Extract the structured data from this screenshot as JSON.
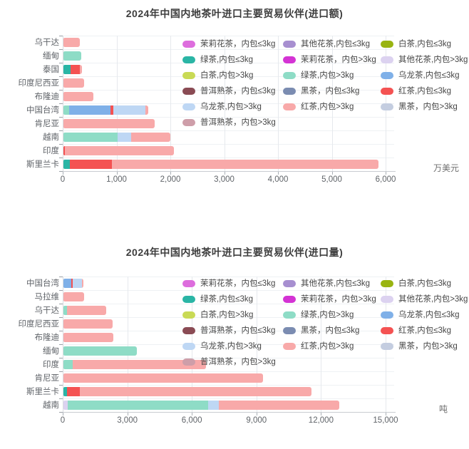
{
  "page_background": "#ffffff",
  "palette": {
    "茉莉花茶，内包≤3kg": "#dd6ddd",
    "其他花茶,内包≤3kg": "#a78fd0",
    "白茶,内包≤3kg": "#99b411",
    "绿茶,内包≤3kg": "#2ab5a5",
    "茉莉花茶，内包>3kg": "#d433d4",
    "其他花茶,内包>3kg": "#dcd2f0",
    "白茶,内包>3kg": "#c9da55",
    "绿茶,内包>3kg": "#8edcc6",
    "乌龙茶,内包≤3kg": "#7fb0e8",
    "普洱熟茶，内包≤3kg": "#8a4b54",
    "黑茶，内包≤3kg": "#7b8cb1",
    "红茶,内包≤3kg": "#f45252",
    "乌龙茶,内包>3kg": "#bed7f4",
    "红茶,内包>3kg": "#f8a9a9",
    "黑茶，内包>3kg": "#c4cde0",
    "普洱熟茶，内包>3kg": "#ce9ea9"
  },
  "legend_order": [
    "茉莉花茶，内包≤3kg",
    "其他花茶,内包≤3kg",
    "白茶,内包≤3kg",
    "绿茶,内包≤3kg",
    "茉莉花茶，内包>3kg",
    "其他花茶,内包>3kg",
    "白茶,内包>3kg",
    "绿茶,内包>3kg",
    "乌龙茶,内包≤3kg",
    "普洱熟茶，内包≤3kg",
    "黑茶，内包≤3kg",
    "红茶,内包≤3kg",
    "乌龙茶,内包>3kg",
    "红茶,内包>3kg",
    "黑茶，内包>3kg",
    "普洱熟茶，内包>3kg"
  ],
  "chart_data": [
    {
      "type": "bar",
      "orientation": "horizontal",
      "stacked": true,
      "grid": true,
      "legend_position": "top-right",
      "title": "2024年中国内地茶叶进口主要贸易伙伴(进口额)",
      "unit": "万美元",
      "xlim": [
        0,
        6000
      ],
      "x_ticks": [
        "0",
        "1,000",
        "2,000",
        "3,000",
        "4,000",
        "5,000",
        "6,000"
      ],
      "categories": [
        "乌干达",
        "缅甸",
        "泰国",
        "印度尼西亚",
        "布隆迪",
        "中国台湾",
        "肯尼亚",
        "越南",
        "印度",
        "斯里兰卡"
      ],
      "bars": [
        [
          {
            "series": "红茶,内包>3kg",
            "value": 300
          }
        ],
        [
          {
            "series": "绿茶,内包>3kg",
            "value": 330
          }
        ],
        [
          {
            "series": "绿茶,内包≤3kg",
            "value": 130
          },
          {
            "series": "红茶,内包≤3kg",
            "value": 170
          },
          {
            "series": "红茶,内包>3kg",
            "value": 40
          }
        ],
        [
          {
            "series": "红茶,内包>3kg",
            "value": 390
          }
        ],
        [
          {
            "series": "红茶,内包>3kg",
            "value": 560
          }
        ],
        [
          {
            "series": "绿茶,内包>3kg",
            "value": 100
          },
          {
            "series": "乌龙茶,内包≤3kg",
            "value": 770
          },
          {
            "series": "红茶,内包≤3kg",
            "value": 60
          },
          {
            "series": "乌龙茶,内包>3kg",
            "value": 590
          },
          {
            "series": "红茶,内包>3kg",
            "value": 60
          }
        ],
        [
          {
            "series": "红茶,内包>3kg",
            "value": 1700
          }
        ],
        [
          {
            "series": "绿茶,内包>3kg",
            "value": 1010
          },
          {
            "series": "乌龙茶,内包>3kg",
            "value": 250
          },
          {
            "series": "红茶,内包>3kg",
            "value": 730
          }
        ],
        [
          {
            "series": "红茶,内包≤3kg",
            "value": 30
          },
          {
            "series": "红茶,内包>3kg",
            "value": 2020
          }
        ],
        [
          {
            "series": "绿茶,内包≤3kg",
            "value": 120
          },
          {
            "series": "红茶,内包≤3kg",
            "value": 780
          },
          {
            "series": "红茶,内包>3kg",
            "value": 4950
          }
        ]
      ]
    },
    {
      "type": "bar",
      "orientation": "horizontal",
      "stacked": true,
      "grid": true,
      "legend_position": "top-right",
      "title": "2024年中国内地茶叶进口主要贸易伙伴(进口量)",
      "unit": "吨",
      "xlim": [
        0,
        15000
      ],
      "x_ticks": [
        "0",
        "3,000",
        "6,000",
        "9,000",
        "12,000",
        "15,000"
      ],
      "categories": [
        "中国台湾",
        "马拉维",
        "乌干达",
        "印度尼西亚",
        "布隆迪",
        "缅甸",
        "印度",
        "肯尼亚",
        "斯里兰卡",
        "越南"
      ],
      "bars": [
        [
          {
            "series": "乌龙茶,内包≤3kg",
            "value": 380
          },
          {
            "series": "红茶,内包≤3kg",
            "value": 40
          },
          {
            "series": "乌龙茶,内包>3kg",
            "value": 430
          },
          {
            "series": "红茶,内包>3kg",
            "value": 80
          }
        ],
        [
          {
            "series": "红茶,内包>3kg",
            "value": 960
          }
        ],
        [
          {
            "series": "绿茶,内包>3kg",
            "value": 170
          },
          {
            "series": "红茶,内包>3kg",
            "value": 1830
          }
        ],
        [
          {
            "series": "红茶,内包>3kg",
            "value": 2280
          }
        ],
        [
          {
            "series": "红茶,内包>3kg",
            "value": 2320
          }
        ],
        [
          {
            "series": "绿茶,内包>3kg",
            "value": 3400
          }
        ],
        [
          {
            "series": "绿茶,内包>3kg",
            "value": 430
          },
          {
            "series": "红茶,内包>3kg",
            "value": 6190
          }
        ],
        [
          {
            "series": "红茶,内包>3kg",
            "value": 9270
          }
        ],
        [
          {
            "series": "绿茶,内包≤3kg",
            "value": 170
          },
          {
            "series": "红茶,内包≤3kg",
            "value": 600
          },
          {
            "series": "红茶,内包>3kg",
            "value": 10750
          }
        ],
        [
          {
            "series": "其他花茶,内包>3kg",
            "value": 200
          },
          {
            "series": "绿茶,内包>3kg",
            "value": 6520
          },
          {
            "series": "乌龙茶,内包>3kg",
            "value": 500
          },
          {
            "series": "红茶,内包>3kg",
            "value": 5590
          }
        ]
      ]
    }
  ]
}
